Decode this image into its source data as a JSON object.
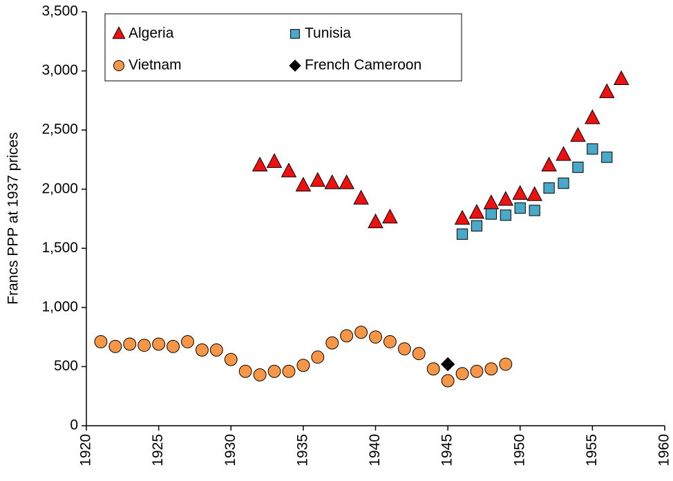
{
  "chart_data": {
    "type": "scatter",
    "y_label": "Francs PPP at 1937 prices",
    "xlim": [
      1920,
      1960
    ],
    "xticks": [
      1920,
      1925,
      1930,
      1935,
      1940,
      1945,
      1950,
      1955,
      1960
    ],
    "ylim": [
      0,
      3500
    ],
    "yticks": [
      0,
      500,
      {
        "value": 1000,
        "label": "1,000"
      },
      {
        "value": 1500,
        "label": "1,500"
      },
      {
        "value": 2000,
        "label": "2,000"
      },
      {
        "value": 2500,
        "label": "2,500"
      },
      {
        "value": 3000,
        "label": "3,000"
      },
      {
        "value": 3500,
        "label": "3,500"
      }
    ],
    "grid": false,
    "legend": "top-left",
    "series": [
      {
        "name": "Algeria",
        "marker": "triangle",
        "color": "#ee1111",
        "x": [
          1932,
          1933,
          1934,
          1935,
          1936,
          1937,
          1938,
          1939,
          1940,
          1941,
          1946,
          1947,
          1948,
          1949,
          1950,
          1951,
          1952,
          1953,
          1954,
          1955,
          1956,
          1957
        ],
        "values": [
          2200,
          2230,
          2150,
          2030,
          2070,
          2050,
          2050,
          1920,
          1720,
          1760,
          1750,
          1800,
          1880,
          1910,
          1960,
          1950,
          2200,
          2290,
          2450,
          2600,
          2820,
          2930
        ]
      },
      {
        "name": "Tunisia",
        "marker": "square",
        "color": "#4aa8c8",
        "x": [
          1946,
          1947,
          1948,
          1949,
          1950,
          1951,
          1952,
          1953,
          1954,
          1955,
          1956
        ],
        "values": [
          1620,
          1690,
          1790,
          1780,
          1840,
          1820,
          2010,
          2050,
          2185,
          2340,
          2270
        ]
      },
      {
        "name": "Vietnam",
        "marker": "circle",
        "color": "#f79646",
        "x": [
          1921,
          1922,
          1923,
          1924,
          1925,
          1926,
          1927,
          1928,
          1929,
          1930,
          1931,
          1932,
          1933,
          1934,
          1935,
          1936,
          1937,
          1938,
          1939,
          1940,
          1941,
          1942,
          1943,
          1944,
          1945,
          1946,
          1947,
          1948,
          1949
        ],
        "values": [
          710,
          670,
          690,
          680,
          690,
          670,
          710,
          640,
          640,
          560,
          460,
          430,
          460,
          460,
          510,
          580,
          700,
          760,
          790,
          750,
          710,
          650,
          610,
          480,
          380,
          440,
          460,
          480,
          520
        ]
      },
      {
        "name": "French Cameroon",
        "marker": "diamond",
        "color": "#000000",
        "x": [
          1945
        ],
        "values": [
          520
        ]
      }
    ]
  }
}
